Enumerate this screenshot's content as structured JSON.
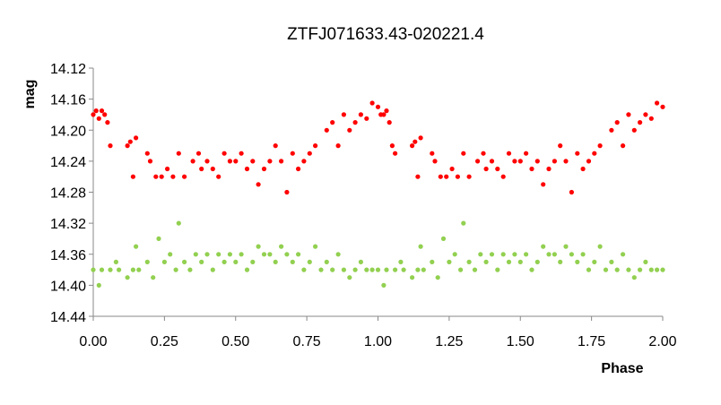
{
  "chart_data": {
    "type": "scatter",
    "title": "ZTFJ071633.43-020221.4",
    "xlabel": "Phase",
    "ylabel": "mag",
    "xlim": [
      0,
      2
    ],
    "ylim": [
      14.12,
      14.44
    ],
    "y_inverted": true,
    "grid": false,
    "legend": "none",
    "x_ticks": [
      "0.00",
      "0.25",
      "0.50",
      "0.75",
      "1.00",
      "1.25",
      "1.50",
      "1.75",
      "2.00"
    ],
    "y_ticks": [
      "14.12",
      "14.16",
      "14.20",
      "14.24",
      "14.28",
      "14.32",
      "14.36",
      "14.40",
      "14.44"
    ],
    "series": [
      {
        "color": "#ff0000",
        "x": [
          0.0,
          0.01,
          0.02,
          0.03,
          0.04,
          0.05,
          0.06,
          0.12,
          0.13,
          0.14,
          0.15,
          0.19,
          0.2,
          0.22,
          0.24,
          0.26,
          0.28,
          0.3,
          0.32,
          0.35,
          0.37,
          0.38,
          0.4,
          0.42,
          0.44,
          0.46,
          0.48,
          0.5,
          0.52,
          0.54,
          0.56,
          0.58,
          0.6,
          0.62,
          0.64,
          0.66,
          0.68,
          0.7,
          0.72,
          0.74,
          0.76,
          0.78,
          0.82,
          0.84,
          0.86,
          0.88,
          0.9,
          0.92,
          0.94,
          0.96,
          0.98,
          1.0,
          1.01,
          1.02,
          1.03,
          1.04,
          1.05,
          1.06,
          1.12,
          1.13,
          1.14,
          1.15,
          1.19,
          1.2,
          1.22,
          1.24,
          1.26,
          1.28,
          1.3,
          1.32,
          1.35,
          1.37,
          1.38,
          1.4,
          1.42,
          1.44,
          1.46,
          1.48,
          1.5,
          1.52,
          1.54,
          1.56,
          1.58,
          1.6,
          1.62,
          1.64,
          1.66,
          1.68,
          1.7,
          1.72,
          1.74,
          1.76,
          1.78,
          1.82,
          1.84,
          1.86,
          1.88,
          1.9,
          1.92,
          1.94,
          1.96,
          1.98,
          2.0
        ],
        "y": [
          14.18,
          14.175,
          14.185,
          14.175,
          14.18,
          14.19,
          14.22,
          14.22,
          14.215,
          14.26,
          14.21,
          14.23,
          14.24,
          14.26,
          14.26,
          14.25,
          14.26,
          14.23,
          14.26,
          14.24,
          14.23,
          14.25,
          14.24,
          14.25,
          14.26,
          14.23,
          14.24,
          14.24,
          14.23,
          14.25,
          14.24,
          14.27,
          14.25,
          14.24,
          14.22,
          14.24,
          14.28,
          14.23,
          14.25,
          14.24,
          14.23,
          14.22,
          14.2,
          14.19,
          14.22,
          14.18,
          14.2,
          14.19,
          14.18,
          14.185,
          14.165,
          14.17,
          14.18,
          14.18,
          14.175,
          14.19,
          14.22,
          14.23,
          14.22,
          14.215,
          14.26,
          14.21,
          14.23,
          14.24,
          14.26,
          14.26,
          14.25,
          14.26,
          14.23,
          14.26,
          14.24,
          14.23,
          14.25,
          14.24,
          14.25,
          14.26,
          14.23,
          14.24,
          14.24,
          14.23,
          14.25,
          14.24,
          14.27,
          14.25,
          14.24,
          14.22,
          14.24,
          14.28,
          14.23,
          14.25,
          14.24,
          14.23,
          14.22,
          14.2,
          14.19,
          14.22,
          14.18,
          14.2,
          14.19,
          14.18,
          14.185,
          14.165,
          14.17
        ]
      },
      {
        "color": "#92d050",
        "x": [
          0.0,
          0.02,
          0.03,
          0.06,
          0.08,
          0.09,
          0.12,
          0.14,
          0.15,
          0.16,
          0.19,
          0.21,
          0.23,
          0.25,
          0.27,
          0.29,
          0.3,
          0.32,
          0.34,
          0.36,
          0.38,
          0.4,
          0.42,
          0.44,
          0.46,
          0.48,
          0.5,
          0.52,
          0.54,
          0.56,
          0.58,
          0.6,
          0.62,
          0.64,
          0.66,
          0.68,
          0.7,
          0.72,
          0.74,
          0.76,
          0.78,
          0.8,
          0.82,
          0.84,
          0.86,
          0.88,
          0.9,
          0.92,
          0.94,
          0.96,
          0.98,
          1.0,
          1.02,
          1.03,
          1.06,
          1.08,
          1.09,
          1.12,
          1.14,
          1.15,
          1.16,
          1.19,
          1.21,
          1.23,
          1.25,
          1.27,
          1.29,
          1.3,
          1.32,
          1.34,
          1.36,
          1.38,
          1.4,
          1.42,
          1.44,
          1.46,
          1.48,
          1.5,
          1.52,
          1.54,
          1.56,
          1.58,
          1.6,
          1.62,
          1.64,
          1.66,
          1.68,
          1.7,
          1.72,
          1.74,
          1.76,
          1.78,
          1.8,
          1.82,
          1.84,
          1.86,
          1.88,
          1.9,
          1.92,
          1.94,
          1.96,
          1.98,
          2.0
        ],
        "y": [
          14.38,
          14.4,
          14.38,
          14.38,
          14.37,
          14.38,
          14.39,
          14.38,
          14.35,
          14.38,
          14.37,
          14.39,
          14.34,
          14.37,
          14.36,
          14.38,
          14.32,
          14.37,
          14.38,
          14.36,
          14.37,
          14.36,
          14.38,
          14.36,
          14.37,
          14.36,
          14.37,
          14.36,
          14.38,
          14.37,
          14.35,
          14.36,
          14.36,
          14.37,
          14.35,
          14.36,
          14.37,
          14.36,
          14.38,
          14.37,
          14.35,
          14.38,
          14.37,
          14.38,
          14.36,
          14.38,
          14.39,
          14.38,
          14.37,
          14.38,
          14.38,
          14.38,
          14.4,
          14.38,
          14.38,
          14.37,
          14.38,
          14.39,
          14.38,
          14.35,
          14.38,
          14.37,
          14.39,
          14.34,
          14.37,
          14.36,
          14.38,
          14.32,
          14.37,
          14.38,
          14.36,
          14.37,
          14.36,
          14.38,
          14.36,
          14.37,
          14.36,
          14.37,
          14.36,
          14.38,
          14.37,
          14.35,
          14.36,
          14.36,
          14.37,
          14.35,
          14.36,
          14.37,
          14.36,
          14.38,
          14.37,
          14.35,
          14.38,
          14.37,
          14.38,
          14.36,
          14.38,
          14.39,
          14.38,
          14.37,
          14.38,
          14.38,
          14.38
        ]
      }
    ]
  }
}
